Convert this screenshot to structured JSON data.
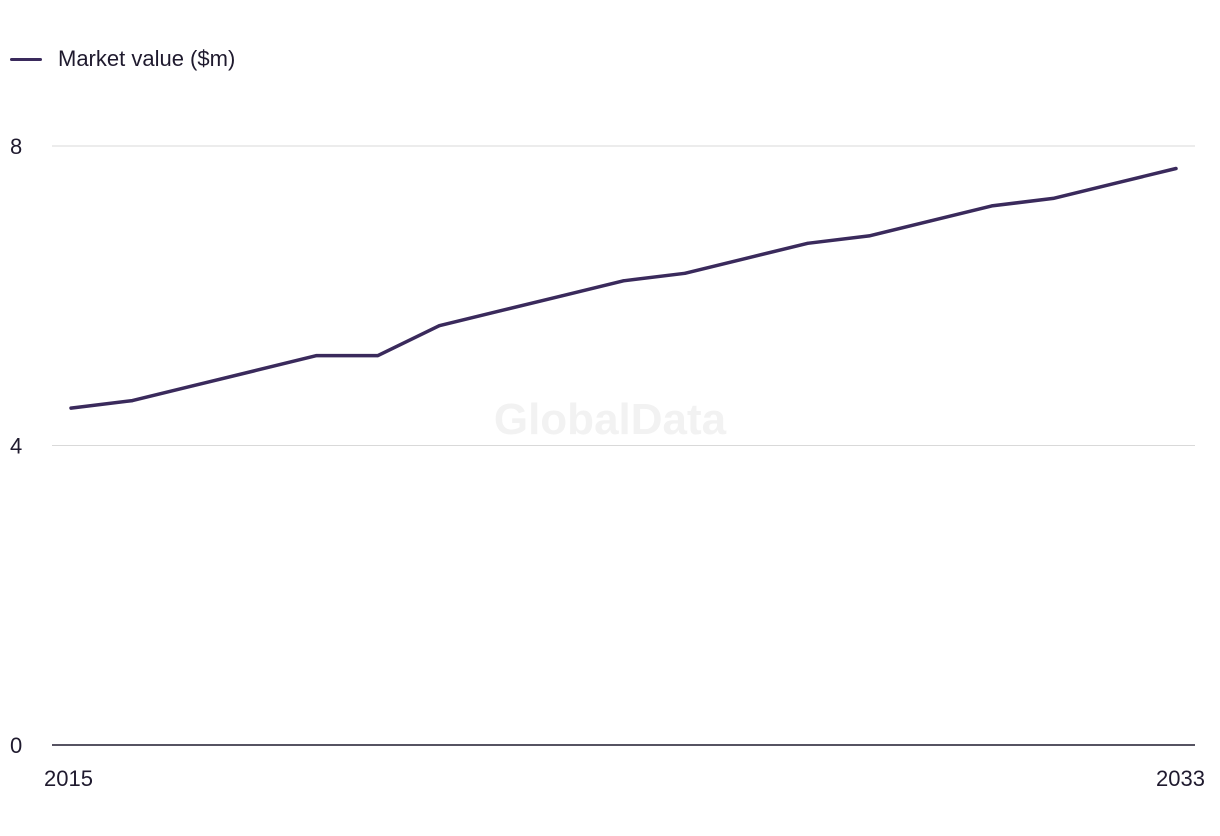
{
  "chart_data": {
    "type": "line",
    "title": "",
    "xlabel": "",
    "ylabel": "",
    "x": [
      2015,
      2016,
      2017,
      2018,
      2019,
      2020,
      2021,
      2022,
      2023,
      2024,
      2025,
      2026,
      2027,
      2028,
      2029,
      2030,
      2031,
      2032,
      2033
    ],
    "series": [
      {
        "name": "Market value ($m)",
        "color": "#3a2a5c",
        "values": [
          4.5,
          4.6,
          4.8,
          5.0,
          5.2,
          5.2,
          5.6,
          5.8,
          6.0,
          6.2,
          6.3,
          6.5,
          6.7,
          6.8,
          7.0,
          7.2,
          7.3,
          7.5,
          7.7
        ]
      }
    ],
    "ylim": [
      0,
      8
    ],
    "y_ticks": [
      "0",
      "4",
      "8"
    ],
    "x_tick_labels": [
      "2015",
      "2033"
    ],
    "grid": true,
    "legend_position": "top-left",
    "watermark": "GlobalData"
  }
}
